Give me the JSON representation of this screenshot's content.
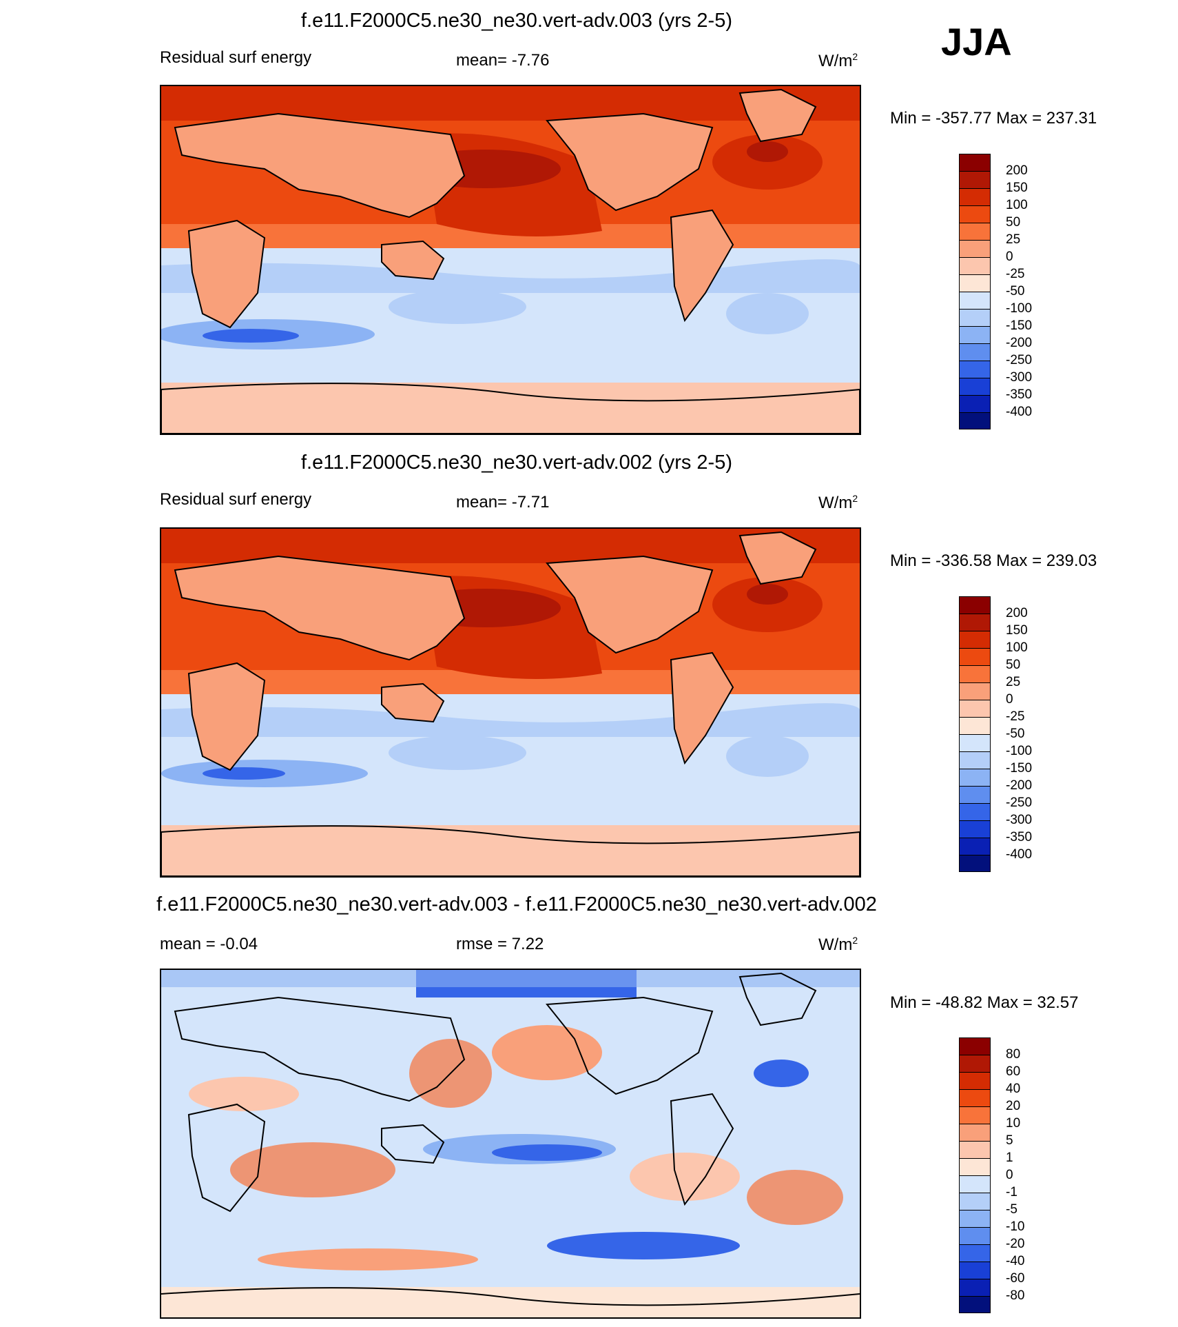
{
  "season": "JJA",
  "panels": [
    {
      "title": "f.e11.F2000C5.ne30_ne30.vert-adv.003 (yrs 2-5)",
      "left_label": "Residual surf energy",
      "center_label": "mean=  -7.76",
      "units": "W/m",
      "units_sup": "2",
      "minmax": "Min = -357.77 Max = 237.31",
      "levels": [
        "200",
        "150",
        "100",
        "50",
        "25",
        "0",
        "-25",
        "-50",
        "-100",
        "-150",
        "-200",
        "-250",
        "-300",
        "-350",
        "-400"
      ],
      "colors": [
        "#8b0000",
        "#b01805",
        "#d42c03",
        "#ec4a10",
        "#f8733a",
        "#f9a07a",
        "#fcc6ae",
        "#fde6d6",
        "#d4e5fb",
        "#b4cff8",
        "#8cb3f4",
        "#5f8eef",
        "#3565e8",
        "#1940d6",
        "#0a20b4",
        "#02107c"
      ],
      "data_mean": -7.76,
      "data_min": -357.77,
      "data_max": 237.31
    },
    {
      "title": "f.e11.F2000C5.ne30_ne30.vert-adv.002 (yrs 2-5)",
      "left_label": "Residual surf energy",
      "center_label": "mean=  -7.71",
      "units": "W/m",
      "units_sup": "2",
      "minmax": "Min = -336.58 Max = 239.03",
      "levels": [
        "200",
        "150",
        "100",
        "50",
        "25",
        "0",
        "-25",
        "-50",
        "-100",
        "-150",
        "-200",
        "-250",
        "-300",
        "-350",
        "-400"
      ],
      "colors": [
        "#8b0000",
        "#b01805",
        "#d42c03",
        "#ec4a10",
        "#f8733a",
        "#f9a07a",
        "#fcc6ae",
        "#fde6d6",
        "#d4e5fb",
        "#b4cff8",
        "#8cb3f4",
        "#5f8eef",
        "#3565e8",
        "#1940d6",
        "#0a20b4",
        "#02107c"
      ],
      "data_mean": -7.71,
      "data_min": -336.58,
      "data_max": 239.03
    },
    {
      "title": "f.e11.F2000C5.ne30_ne30.vert-adv.003 - f.e11.F2000C5.ne30_ne30.vert-adv.002",
      "left_label": "mean =  -0.04",
      "center_label": "rmse =   7.22",
      "units": "W/m",
      "units_sup": "2",
      "minmax": "Min = -48.82 Max =  32.57",
      "levels": [
        "80",
        "60",
        "40",
        "20",
        "10",
        "5",
        "1",
        "0",
        "-1",
        "-5",
        "-10",
        "-20",
        "-40",
        "-60",
        "-80"
      ],
      "colors": [
        "#8b0000",
        "#b01805",
        "#d42c03",
        "#ec4a10",
        "#f8733a",
        "#f9a07a",
        "#fcc6ae",
        "#fde6d6",
        "#d4e5fb",
        "#b4cff8",
        "#8cb3f4",
        "#5f8eef",
        "#3565e8",
        "#1940d6",
        "#0a20b4",
        "#02107c"
      ],
      "data_mean": -0.04,
      "data_rmse": 7.22,
      "data_min": -48.82,
      "data_max": 32.57
    }
  ]
}
